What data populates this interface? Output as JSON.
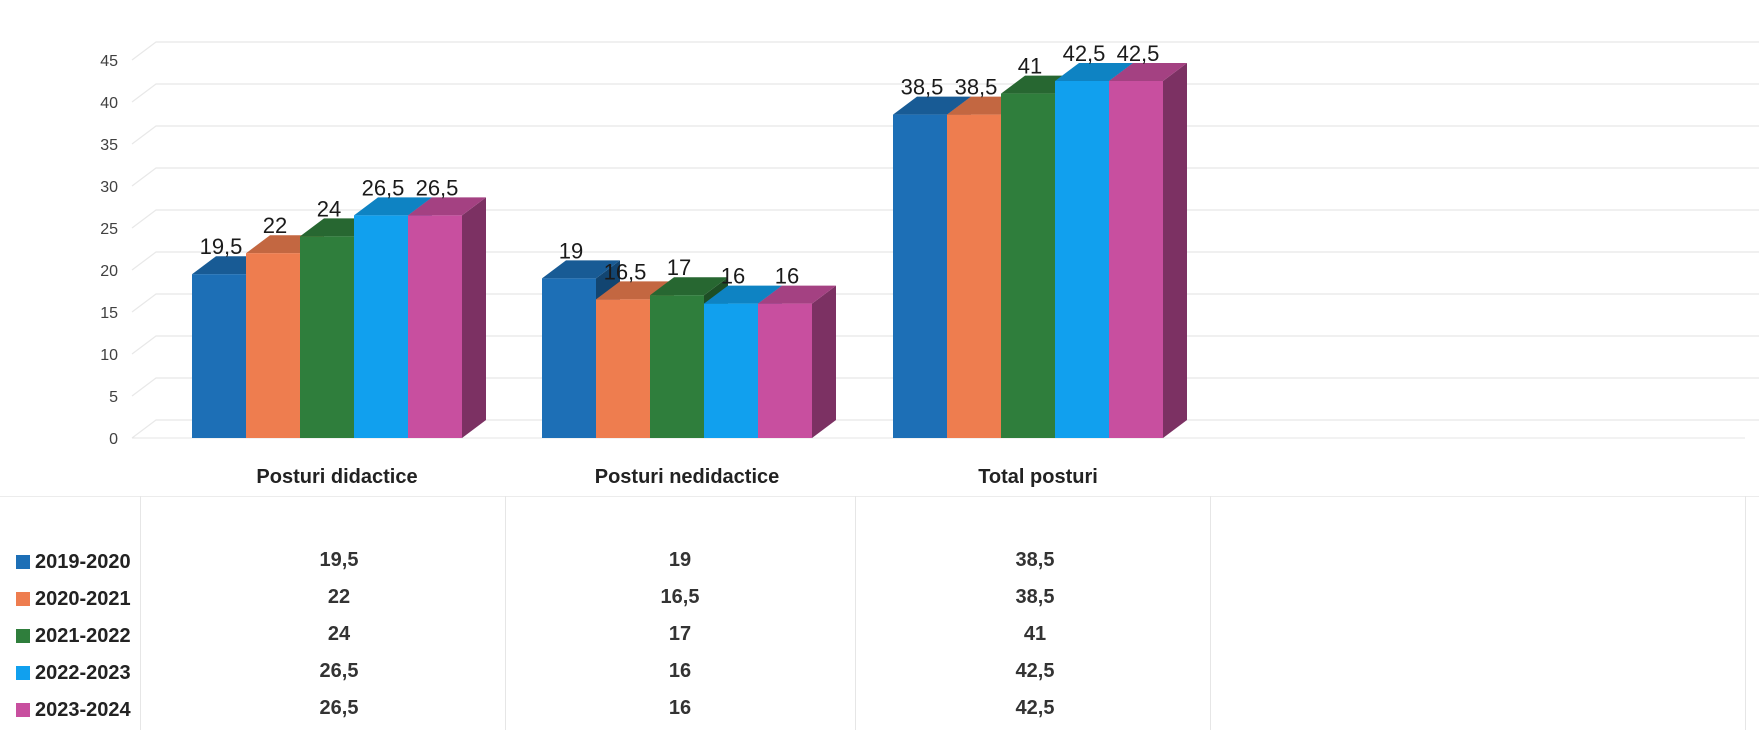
{
  "chart_data": {
    "type": "bar",
    "categories": [
      "Posturi didactice",
      "Posturi nedidactice",
      "Total posturi"
    ],
    "series": [
      {
        "name": "2019-2020",
        "color": "#1d6fb6",
        "values": [
          19.5,
          19,
          38.5
        ],
        "labels": [
          "19,5",
          "19",
          "38,5"
        ]
      },
      {
        "name": "2020-2021",
        "color": "#ee7d4f",
        "values": [
          22,
          16.5,
          38.5
        ],
        "labels": [
          "22",
          "16,5",
          "38,5"
        ]
      },
      {
        "name": "2021-2022",
        "color": "#2f7e3c",
        "values": [
          24,
          17,
          41
        ],
        "labels": [
          "24",
          "17",
          "41"
        ]
      },
      {
        "name": "2022-2023",
        "color": "#11a0ee",
        "values": [
          26.5,
          16,
          42.5
        ],
        "labels": [
          "26,5",
          "16",
          "42,5"
        ]
      },
      {
        "name": "2023-2024",
        "color": "#c84f9f",
        "values": [
          26.5,
          16,
          42.5
        ],
        "labels": [
          "26,5",
          "16",
          "42,5"
        ]
      }
    ],
    "ylim": [
      0,
      45
    ],
    "yticks": [
      "0",
      "5",
      "10",
      "15",
      "20",
      "25",
      "30",
      "35",
      "40",
      "45"
    ],
    "grid": true,
    "legend": "bottom-left data table",
    "data_table": true
  }
}
